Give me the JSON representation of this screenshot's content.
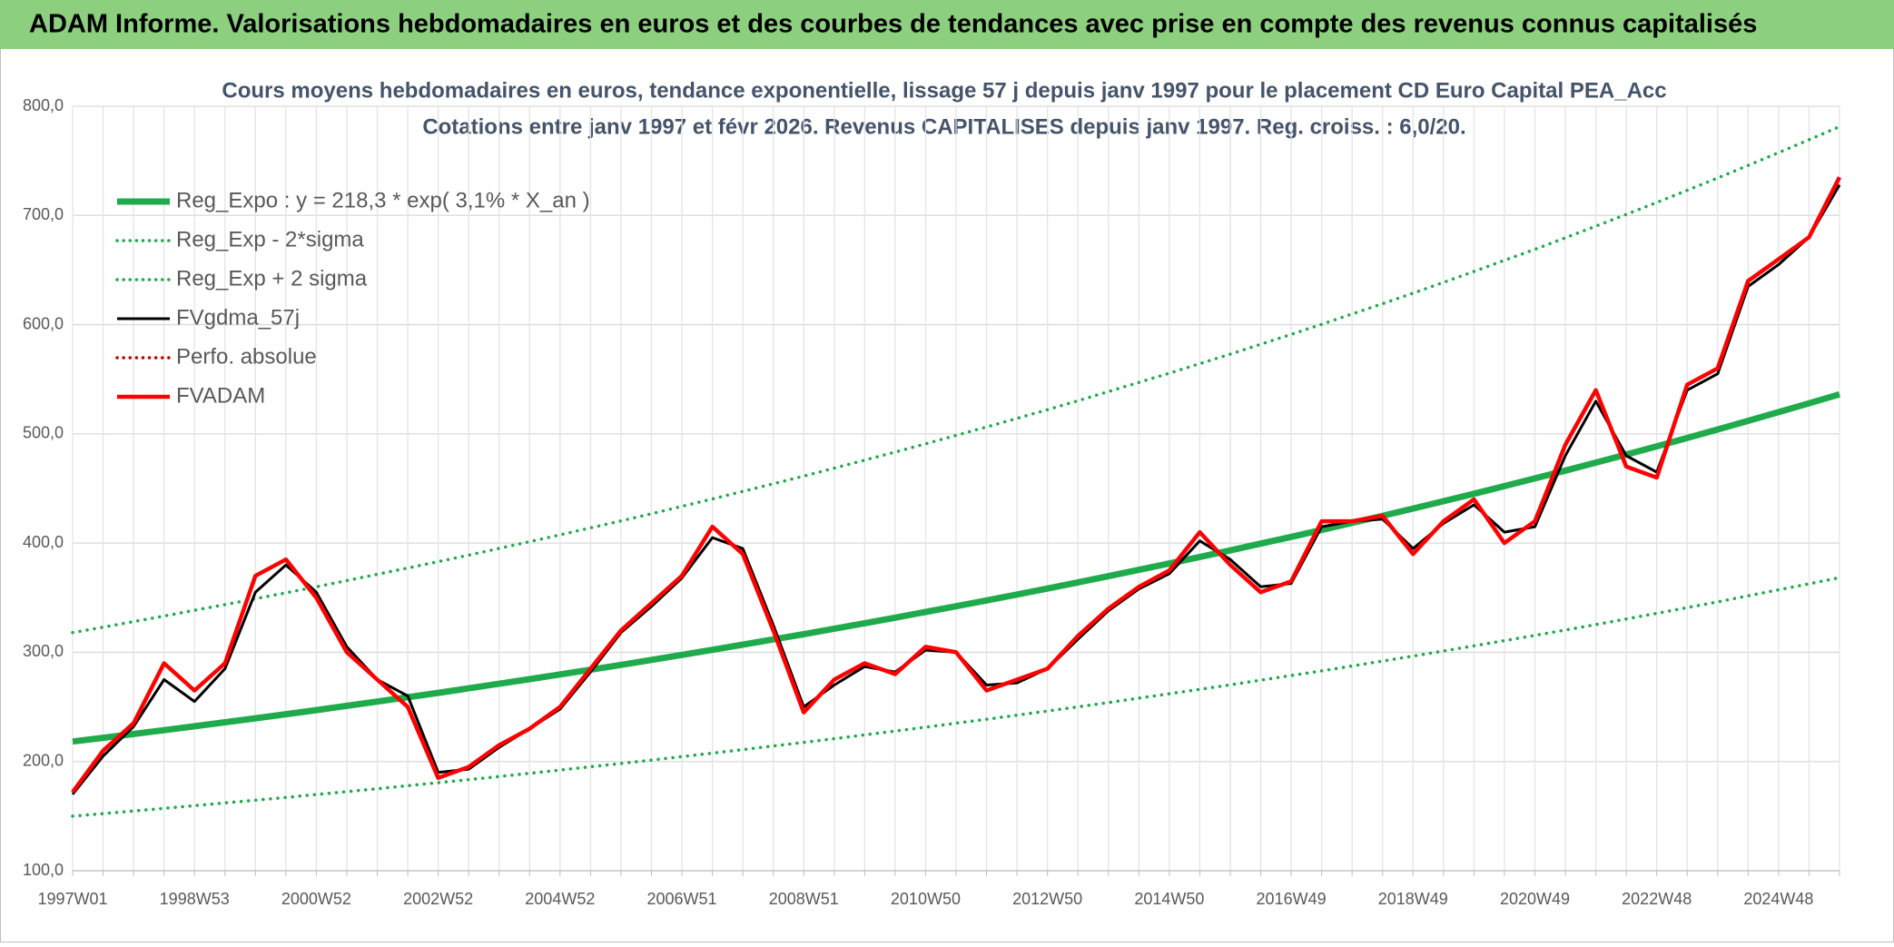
{
  "header": {
    "title": "ADAM Informe. Valorisations hebdomadaires en euros et des courbes de tendances avec prise en compte des revenus connus capitalisés"
  },
  "chart_data": {
    "type": "line",
    "title": "Cours moyens hebdomadaires en euros, tendance exponentielle, lissage 57 j depuis janv 1997 pour le placement CD Euro Capital PEA_Acc",
    "subtitle": "Cotations entre janv 1997 et févr 2026. Revenus CAPITALISES depuis janv 1997. Reg. croiss. : 6,0/20.",
    "categories": [
      "1997W01",
      null,
      null,
      null,
      "1998W53",
      null,
      null,
      null,
      "2000W52",
      null,
      null,
      null,
      "2002W52",
      null,
      null,
      null,
      "2004W52",
      null,
      null,
      null,
      "2006W51",
      null,
      null,
      null,
      "2008W51",
      null,
      null,
      null,
      "2010W50",
      null,
      null,
      null,
      "2012W50",
      null,
      null,
      null,
      "2014W50",
      null,
      null,
      null,
      "2016W49",
      null,
      null,
      null,
      "2018W49",
      null,
      null,
      null,
      "2020W49",
      null,
      null,
      null,
      "2022W48",
      null,
      null,
      null,
      "2024W48",
      null,
      null
    ],
    "ylim": [
      100,
      800
    ],
    "yticks": [
      {
        "value": 100,
        "label": "100,0"
      },
      {
        "value": 200,
        "label": "200,0"
      },
      {
        "value": 300,
        "label": "300,0"
      },
      {
        "value": 400,
        "label": "400,0"
      },
      {
        "value": 500,
        "label": "500,0"
      },
      {
        "value": 600,
        "label": "600,0"
      },
      {
        "value": 700,
        "label": "700,0"
      },
      {
        "value": 800,
        "label": "800,0"
      }
    ],
    "grid": true,
    "legend": "upper left",
    "series": [
      {
        "name": "Reg_Expo : y = 218,3 * exp( 3,1% *  X_an )",
        "color": "#1fab4c",
        "line_style": "thick",
        "values": [
          218.3,
          221.7,
          225.2,
          228.7,
          232.3,
          235.9,
          239.6,
          243.3,
          247.1,
          251.0,
          254.9,
          258.9,
          262.9,
          267.0,
          271.2,
          275.4,
          279.7,
          284.1,
          288.5,
          293.0,
          297.6,
          302.3,
          307.0,
          311.8,
          316.6,
          321.6,
          326.6,
          331.7,
          336.9,
          342.2,
          347.5,
          352.9,
          358.4,
          364.0,
          369.7,
          375.5,
          381.3,
          387.3,
          393.3,
          399.5,
          405.7,
          412.0,
          418.5,
          425.0,
          431.6,
          438.4,
          445.2,
          452.2,
          459.2,
          466.4,
          473.7,
          481.1,
          488.6,
          496.2,
          504.0,
          511.9,
          519.9,
          528.0,
          536.2
        ]
      },
      {
        "name": "Reg_Exp - 2*sigma",
        "color": "#1fab4c",
        "line_style": "dotted",
        "values": [
          150.0,
          152.3,
          154.7,
          157.1,
          159.6,
          162.1,
          164.6,
          167.1,
          169.8,
          172.4,
          175.1,
          177.9,
          180.6,
          183.4,
          186.3,
          189.2,
          192.2,
          195.2,
          198.2,
          201.3,
          204.5,
          207.7,
          210.9,
          214.2,
          217.5,
          220.9,
          224.4,
          227.9,
          231.4,
          235.1,
          238.7,
          242.4,
          246.2,
          250.1,
          254.0,
          258.0,
          262.0,
          266.1,
          270.2,
          274.5,
          278.7,
          283.0,
          287.5,
          292.0,
          296.5,
          301.2,
          305.9,
          310.7,
          315.5,
          320.4,
          325.4,
          330.5,
          335.7,
          340.9,
          346.2,
          351.7,
          357.2,
          362.7,
          368.4
        ]
      },
      {
        "name": "Reg_Exp + 2 sigma",
        "color": "#1fab4c",
        "line_style": "dotted",
        "values": [
          318.1,
          323.0,
          328.1,
          333.2,
          338.5,
          343.7,
          349.1,
          354.5,
          360.0,
          365.7,
          371.4,
          377.2,
          383.0,
          389.0,
          395.1,
          401.3,
          407.5,
          413.9,
          420.3,
          426.9,
          433.6,
          440.4,
          447.3,
          454.3,
          461.3,
          468.6,
          475.9,
          483.3,
          490.9,
          498.6,
          506.3,
          514.2,
          522.2,
          530.3,
          538.7,
          547.1,
          555.6,
          564.3,
          573.0,
          582.1,
          591.1,
          600.3,
          609.8,
          619.2,
          628.8,
          638.7,
          648.7,
          658.9,
          669.0,
          679.5,
          690.2,
          701.0,
          711.9,
          723.0,
          734.3,
          745.8,
          757.5,
          769.3,
          781.3
        ]
      },
      {
        "name": "FVgdma_57j",
        "color": "#000000",
        "line_style": "solid",
        "values": [
          170,
          205,
          232,
          275,
          255,
          285,
          355,
          380,
          355,
          305,
          275,
          260,
          190,
          193,
          213,
          230,
          248,
          282,
          318,
          342,
          368,
          405,
          395,
          325,
          250,
          270,
          287,
          282,
          302,
          300,
          270,
          272,
          285,
          312,
          338,
          358,
          372,
          402,
          385,
          360,
          363,
          415,
          420,
          422,
          395,
          418,
          435,
          410,
          415,
          480,
          530,
          480,
          465,
          540,
          555,
          635,
          655,
          680,
          728
        ]
      },
      {
        "name": "Perfo. absolue",
        "color": "#c00000",
        "line_style": "dotted",
        "values": [
          null,
          null,
          null,
          null,
          null,
          null,
          null,
          null,
          null,
          null,
          null,
          null,
          null,
          null,
          null,
          null,
          null,
          null,
          null,
          null,
          null,
          null,
          null,
          null,
          null,
          null,
          null,
          null,
          null,
          null,
          null,
          null,
          null,
          null,
          null,
          null,
          null,
          null,
          null,
          null,
          null,
          null,
          null,
          null,
          null,
          null,
          null,
          null,
          null,
          null,
          null,
          null,
          null,
          null,
          null,
          null,
          null,
          null,
          null
        ]
      },
      {
        "name": "FVADAM",
        "color": "#ff0000",
        "line_style": "solid",
        "values": [
          172,
          210,
          235,
          290,
          265,
          290,
          370,
          385,
          350,
          300,
          275,
          250,
          185,
          195,
          215,
          230,
          250,
          285,
          320,
          345,
          370,
          415,
          390,
          320,
          245,
          275,
          290,
          280,
          305,
          300,
          265,
          275,
          285,
          315,
          340,
          360,
          375,
          410,
          380,
          355,
          365,
          420,
          420,
          425,
          390,
          420,
          440,
          400,
          420,
          490,
          540,
          470,
          460,
          545,
          560,
          640,
          660,
          680,
          735
        ]
      }
    ]
  }
}
